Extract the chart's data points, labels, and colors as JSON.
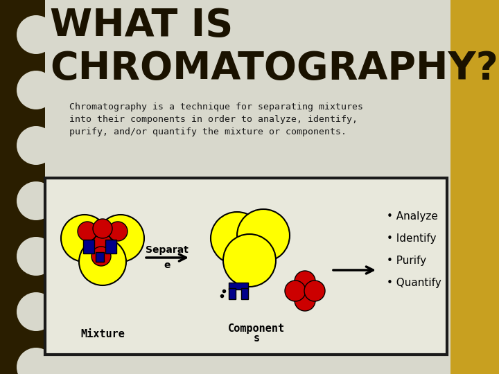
{
  "bg_color": "#d8d8cc",
  "left_bar_color": "#2a1e00",
  "title_line1": "WHAT IS",
  "title_line2": "CHROMATOGRAPHY?",
  "title_color": "#1a1200",
  "body_text_lines": [
    "Chromatography is a technique for separating mixtures",
    "into their components in order to analyze, identify,",
    "purify, and/or quantify the mixture or components."
  ],
  "body_color": "#1a1a1a",
  "box_bg": "#e8e8dc",
  "box_border": "#1a1a1a",
  "yellow": "#ffff00",
  "red": "#cc0000",
  "blue": "#00008b",
  "black": "#000000",
  "label_mixture": "Mixture",
  "label_separate_line1": "Separat",
  "label_separate_line2": "e",
  "label_components_line1": "Component",
  "label_components_line2": "s",
  "bullet_items": [
    "Analyze",
    "Identify",
    "Purify",
    "Quantify"
  ]
}
